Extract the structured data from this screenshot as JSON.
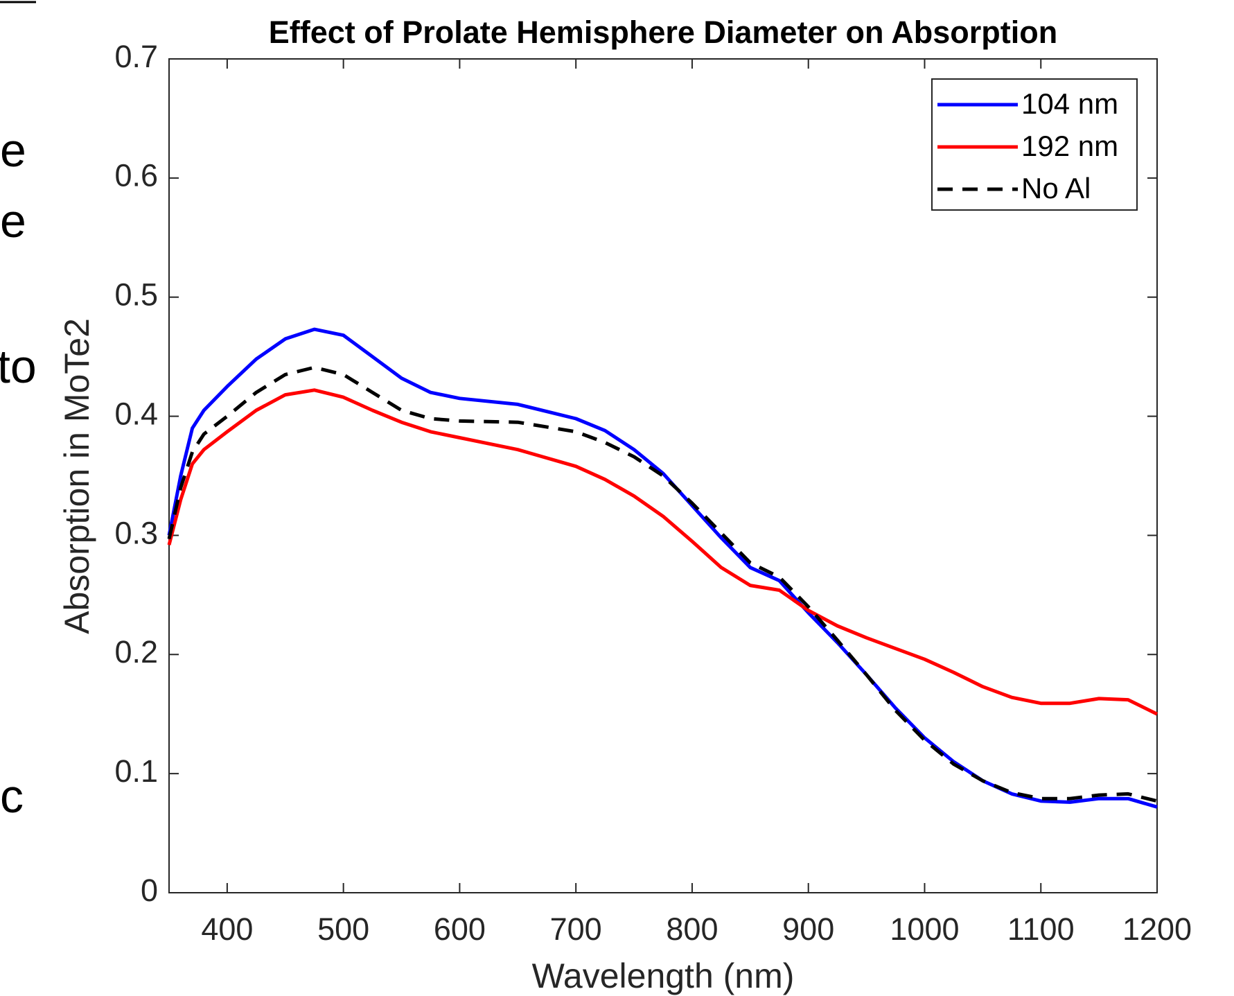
{
  "side_text": [
    "e",
    "e",
    "to",
    "c"
  ],
  "chart_data": {
    "type": "line",
    "title": "Effect of Prolate Hemisphere Diameter on Absorption",
    "xlabel": "Wavelength (nm)",
    "ylabel": "Absorption in MoTe2",
    "x": [
      350,
      360,
      370,
      380,
      400,
      425,
      450,
      475,
      500,
      525,
      550,
      575,
      600,
      650,
      700,
      725,
      750,
      775,
      800,
      825,
      850,
      875,
      900,
      925,
      950,
      975,
      1000,
      1025,
      1050,
      1075,
      1100,
      1125,
      1150,
      1175,
      1200
    ],
    "series": [
      {
        "name": "104 nm",
        "color": "#0000ff",
        "dash": false,
        "values": [
          0.3,
          0.35,
          0.39,
          0.405,
          0.425,
          0.448,
          0.465,
          0.473,
          0.468,
          0.45,
          0.432,
          0.42,
          0.415,
          0.41,
          0.398,
          0.388,
          0.372,
          0.352,
          0.325,
          0.298,
          0.273,
          0.262,
          0.235,
          0.21,
          0.183,
          0.155,
          0.13,
          0.11,
          0.094,
          0.083,
          0.077,
          0.076,
          0.079,
          0.079,
          0.072
        ]
      },
      {
        "name": "192 nm",
        "color": "#ff0000",
        "dash": false,
        "values": [
          0.292,
          0.33,
          0.36,
          0.372,
          0.387,
          0.405,
          0.418,
          0.422,
          0.416,
          0.405,
          0.395,
          0.387,
          0.382,
          0.372,
          0.358,
          0.347,
          0.333,
          0.316,
          0.295,
          0.273,
          0.258,
          0.254,
          0.237,
          0.224,
          0.214,
          0.205,
          0.196,
          0.185,
          0.173,
          0.164,
          0.159,
          0.159,
          0.163,
          0.162,
          0.15
        ]
      },
      {
        "name": "No Al",
        "color": "#000000",
        "dash": true,
        "values": [
          0.297,
          0.34,
          0.37,
          0.385,
          0.4,
          0.42,
          0.435,
          0.441,
          0.435,
          0.42,
          0.405,
          0.398,
          0.396,
          0.395,
          0.387,
          0.378,
          0.366,
          0.35,
          0.327,
          0.302,
          0.277,
          0.265,
          0.24,
          0.212,
          0.183,
          0.153,
          0.128,
          0.108,
          0.094,
          0.084,
          0.079,
          0.079,
          0.082,
          0.083,
          0.077
        ]
      }
    ],
    "xlim": [
      350,
      1200
    ],
    "xticks": [
      400,
      500,
      600,
      700,
      800,
      900,
      1000,
      1100,
      1200
    ],
    "ylim": [
      0,
      0.7
    ],
    "yticks": [
      0,
      0.1,
      0.2,
      0.3,
      0.4,
      0.5,
      0.6,
      0.7
    ],
    "legend": "top-right",
    "grid": false
  }
}
